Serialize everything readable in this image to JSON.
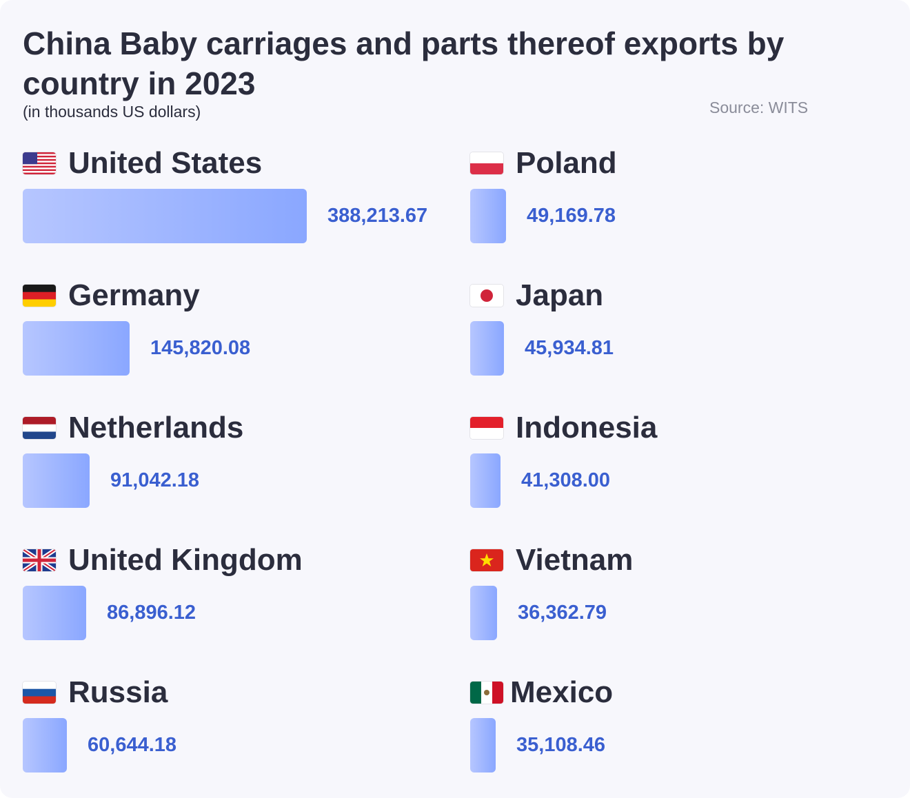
{
  "title": "China Baby carriages and parts thereof exports by country in 2023",
  "subtitle": "(in thousands US dollars)",
  "source": "Source: WITS",
  "chart_data": {
    "type": "bar",
    "orientation": "horizontal",
    "title": "China Baby carriages and parts thereof exports by country in 2023",
    "subtitle": "(in thousands US dollars)",
    "categories": [
      "United States",
      "Germany",
      "Netherlands",
      "United Kingdom",
      "Russia",
      "Poland",
      "Japan",
      "Indonesia",
      "Vietnam",
      "Mexico"
    ],
    "values": [
      388213.67,
      145820.08,
      91042.18,
      86896.12,
      60644.18,
      49169.78,
      45934.81,
      41308.0,
      36362.79,
      35108.46
    ],
    "value_labels": [
      "388,213.67",
      "145,820.08",
      "91,042.18",
      "86,896.12",
      "60,644.18",
      "49,169.78",
      "45,934.81",
      "41,308.00",
      "36,362.79",
      "35,108.46"
    ],
    "flag_icons": [
      "us-flag-icon",
      "germany-flag-icon",
      "netherlands-flag-icon",
      "uk-flag-icon",
      "russia-flag-icon",
      "poland-flag-icon",
      "japan-flag-icon",
      "indonesia-flag-icon",
      "vietnam-flag-icon",
      "mexico-flag-icon"
    ],
    "bar_color_start": "#b6c6ff",
    "bar_color_end": "#8aa7ff",
    "value_color": "#3a5fd0",
    "grid": false,
    "legend": "none"
  }
}
